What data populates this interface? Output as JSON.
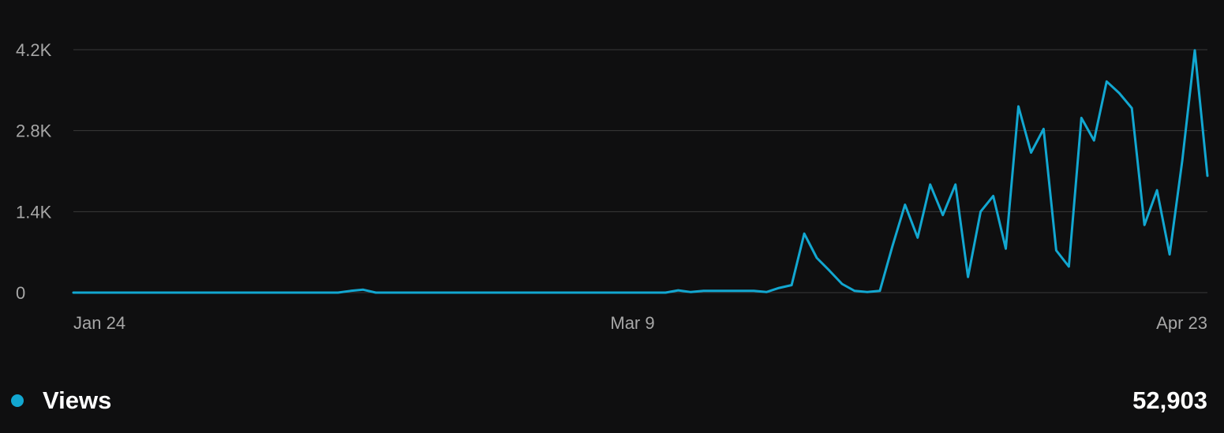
{
  "colors": {
    "background": "#0f0f10",
    "grid": "#3a3a3a",
    "line": "#12a7d1",
    "tick_text": "#a7a7a7",
    "legend_text": "#ffffff"
  },
  "legend": {
    "series_label": "Views",
    "total": "52,903"
  },
  "chart_data": {
    "type": "line",
    "title": "",
    "xlabel": "",
    "ylabel": "",
    "ylim": [
      0,
      4200
    ],
    "grid": true,
    "y_ticks": [
      {
        "value": 0,
        "label": "0"
      },
      {
        "value": 1400,
        "label": "1.4K"
      },
      {
        "value": 2800,
        "label": "2.8K"
      },
      {
        "value": 4200,
        "label": "4.2K"
      }
    ],
    "x_tick_labels": [
      "Jan 24",
      "Mar 9",
      "Apr 23"
    ],
    "x_range": [
      "Jan 24",
      "Apr 23"
    ],
    "series": [
      {
        "name": "Views",
        "values": [
          0,
          0,
          0,
          0,
          0,
          0,
          0,
          0,
          0,
          0,
          0,
          0,
          0,
          0,
          0,
          0,
          0,
          0,
          0,
          0,
          0,
          0,
          30,
          50,
          0,
          0,
          0,
          0,
          0,
          0,
          0,
          0,
          0,
          0,
          0,
          0,
          0,
          0,
          0,
          0,
          0,
          0,
          0,
          0,
          0,
          0,
          0,
          0,
          40,
          10,
          30,
          30,
          30,
          30,
          30,
          10,
          80,
          130,
          1020,
          600,
          380,
          150,
          30,
          10,
          30,
          800,
          1520,
          950,
          1870,
          1340,
          1870,
          270,
          1400,
          1670,
          760,
          3220,
          2420,
          2830,
          730,
          450,
          3020,
          2630,
          3650,
          3450,
          3190,
          1170,
          1770,
          660,
          2280,
          4190,
          2020
        ]
      }
    ]
  }
}
